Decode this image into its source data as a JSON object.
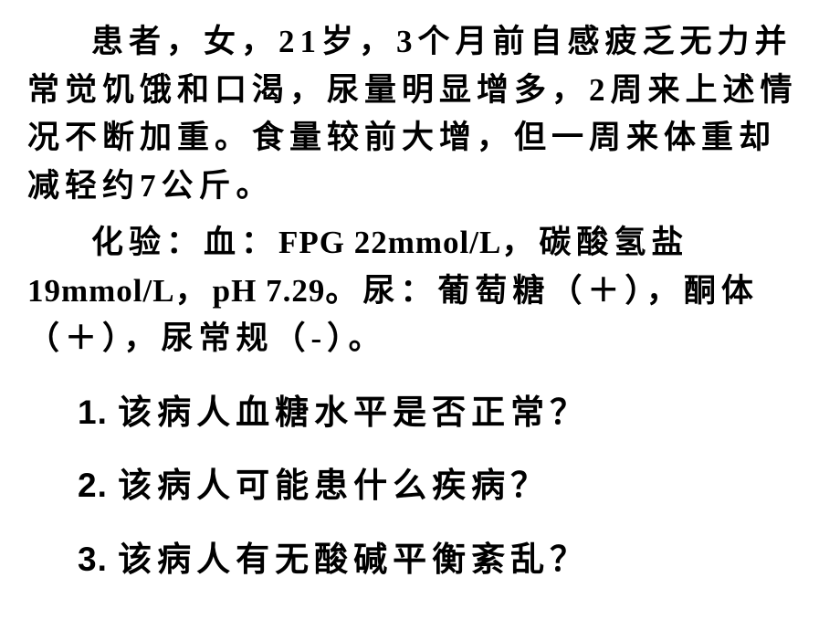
{
  "case": {
    "para1": "患者，女，21岁，3个月前自感疲乏无力并常觉饥饿和口渴，尿量明显增多，2周来上述情况不断加重。食量较前大增，但一周来体重却减轻约7公斤。",
    "para2_pre": "化验：血：",
    "fpg_label": "FPG 22mmol/L",
    "para2_mid1": "，碳酸氢盐",
    "bicarb": "19mmol/L",
    "comma1": "，",
    "ph_label": "pH 7.29",
    "para2_mid2": "。尿：葡萄糖（＋），酮体（＋），尿常规（-）。"
  },
  "questions": {
    "q1_num": "1. ",
    "q1": "该病人血糖水平是否正常？",
    "q2_num": "2. ",
    "q2": "该病人可能患什么疾病？",
    "q3_num": "3. ",
    "q3": "该病人有无酸碱平衡紊乱？"
  },
  "style": {
    "background_color": "#ffffff",
    "text_color": "#000000",
    "body_fontsize": 35,
    "question_fontsize": 37,
    "letter_spacing": 6,
    "line_height": 1.5,
    "font_family": "KaiTi"
  }
}
